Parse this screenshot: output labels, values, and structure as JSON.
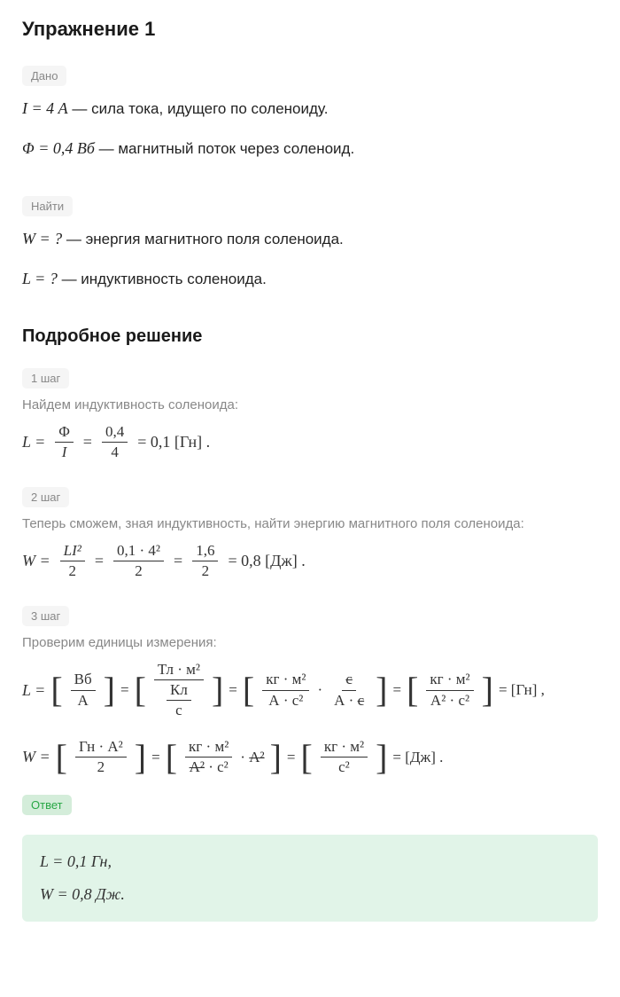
{
  "exercise": {
    "title": "Упражнение 1"
  },
  "badges": {
    "given": "Дано",
    "find": "Найти",
    "answer": "Ответ"
  },
  "given": {
    "line1_formula": "I = 4 А",
    "line1_text": " — сила тока, идущего по соленоиду.",
    "line2_formula": "Φ = 0,4 Вб",
    "line2_text": " — магнитный поток через соленоид."
  },
  "find": {
    "line1_formula": "W = ?",
    "line1_text": " — энергия магнитного поля соленоида.",
    "line2_formula": "L = ?",
    "line2_text": " — индуктивность соленоида."
  },
  "solution": {
    "title": "Подробное решение"
  },
  "steps": {
    "step1": {
      "badge": "1 шаг",
      "text": "Найдем индуктивность соленоида:",
      "lhs": "L =",
      "frac1_num": "Φ",
      "frac1_den": "I",
      "eq1": "=",
      "frac2_num": "0,4",
      "frac2_den": "4",
      "result": "= 0,1  [Гн] ."
    },
    "step2": {
      "badge": "2 шаг",
      "text": "Теперь сможем, зная индуктивность, найти энергию магнитного поля соленоида:",
      "lhs": "W =",
      "frac1_num": "LI²",
      "frac1_den": "2",
      "eq1": "=",
      "frac2_num": "0,1 · 4²",
      "frac2_den": "2",
      "eq2": "=",
      "frac3_num": "1,6",
      "frac3_den": "2",
      "result": "= 0,8  [Дж] ."
    },
    "step3": {
      "badge": "3 шаг",
      "text": "Проверим единицы измерения:",
      "L_lhs": "L =",
      "L_f1_num": "Вб",
      "L_f1_den": "А",
      "L_eq1": "=",
      "L_f2_num": "Тл · м²",
      "L_f2_den_num": "Кл",
      "L_f2_den_den": "с",
      "L_eq2": "=",
      "L_f3_num": "кг · м²",
      "L_f3_den": "А · с²",
      "L_f3_mult": "·",
      "L_f3b_num": "с",
      "L_f3b_den": "А · с",
      "L_eq3": "=",
      "L_f4_num": "кг · м²",
      "L_f4_den": "А² · с²",
      "L_eq4": "= [Гн] ,",
      "W_lhs": "W =",
      "W_f1_num": "Гн · А²",
      "W_f1_den": "2",
      "W_eq1": "=",
      "W_f2_num": "кг · м²",
      "W_f2_den": "А² · с²",
      "W_f2_mult": "· А²",
      "W_eq2": "=",
      "W_f3_num": "кг · м²",
      "W_f3_den": "с²",
      "W_eq3": "= [Дж] ."
    }
  },
  "answer": {
    "line1": "L = 0,1 Гн,",
    "line2": "W = 0,8 Дж."
  },
  "colors": {
    "badge_bg": "#f5f5f5",
    "badge_text": "#888888",
    "answer_bg": "#e1f4e8",
    "answer_badge_bg": "#d4edda",
    "answer_badge_text": "#28a745",
    "text": "#333333",
    "heading": "#1a1a1a"
  }
}
